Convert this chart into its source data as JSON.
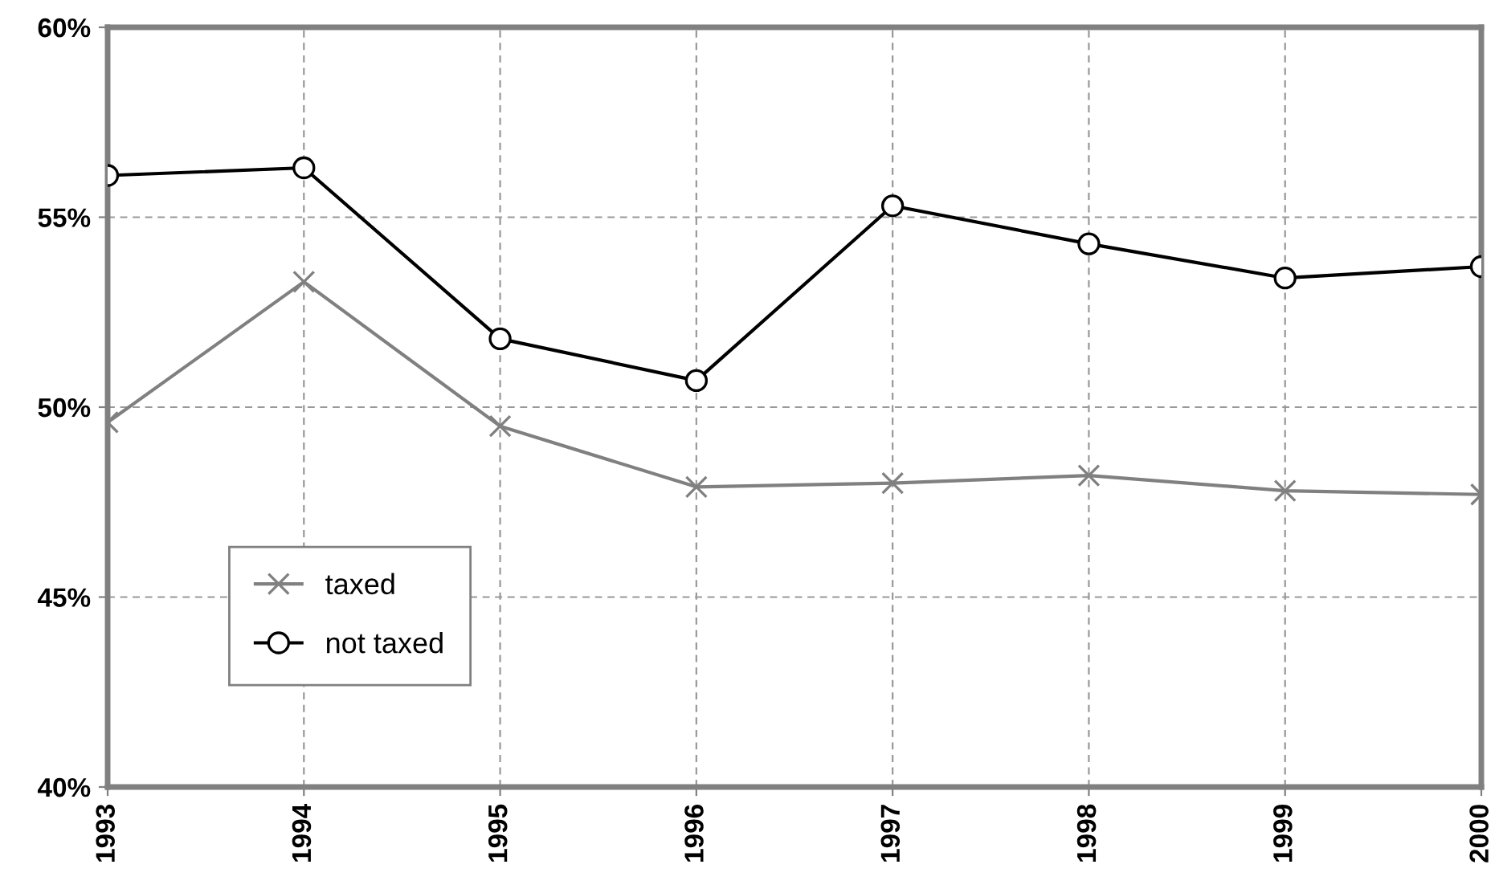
{
  "chart_data": {
    "type": "line",
    "x": [
      1993,
      1994,
      1995,
      1996,
      1997,
      1998,
      1999,
      2000
    ],
    "series": [
      {
        "name": "taxed",
        "color": "#808080",
        "marker": "cross",
        "values": [
          49.6,
          53.3,
          49.5,
          47.9,
          48.0,
          48.2,
          47.8,
          47.7
        ]
      },
      {
        "name": "not taxed",
        "color": "#000000",
        "marker": "circle",
        "values": [
          56.1,
          56.3,
          51.8,
          50.7,
          55.3,
          54.3,
          53.4,
          53.7
        ]
      }
    ],
    "xlim": [
      1993,
      2000
    ],
    "xticks": [
      1993,
      1994,
      1995,
      1996,
      1997,
      1998,
      1999,
      2000
    ],
    "ylim": [
      40,
      60
    ],
    "yticks": [
      {
        "value": 40,
        "label": "40%"
      },
      {
        "value": 45,
        "label": "45%"
      },
      {
        "value": 50,
        "label": "50%"
      },
      {
        "value": 55,
        "label": "55%"
      },
      {
        "value": 60,
        "label": "60%"
      }
    ],
    "grid": true,
    "legend": "lower left"
  }
}
